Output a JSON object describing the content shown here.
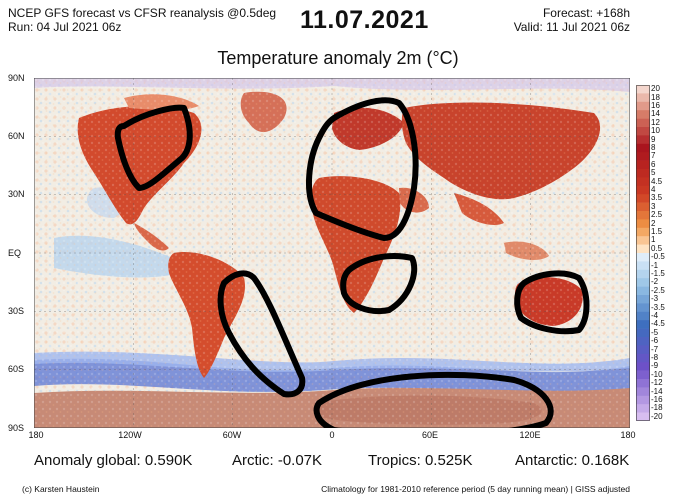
{
  "header": {
    "left_line1": "NCEP GFS forecast vs CFSR reanalysis @0.5deg",
    "left_line2": "Run: 04 Jul 2021 06z",
    "date": "11.07.2021",
    "right_line1": "Forecast: +168h",
    "right_line2": "Valid: 11 Jul 2021 06z"
  },
  "title": "Temperature anomaly 2m (°C)",
  "map": {
    "lat_labels": [
      "90N",
      "60N",
      "30N",
      "EQ",
      "30S",
      "60S",
      "90S"
    ],
    "lon_labels": [
      "180",
      "120W",
      "60W",
      "0",
      "60E",
      "120E",
      "180"
    ]
  },
  "colorbar": {
    "labels": [
      "20",
      "18",
      "16",
      "14",
      "12",
      "10",
      "9",
      "8",
      "7",
      "6",
      "5",
      "4.5",
      "4",
      "3.5",
      "3",
      "2.5",
      "2",
      "1.5",
      "1",
      "0.5",
      "-0.5",
      "-1",
      "-1.5",
      "-2",
      "-2.5",
      "-3",
      "-3.5",
      "-4",
      "-4.5",
      "-5",
      "-6",
      "-7",
      "-8",
      "-9",
      "-10",
      "-12",
      "-14",
      "-16",
      "-18",
      "-20"
    ]
  },
  "stats": {
    "global": "Anomaly global: 0.590K",
    "arctic": "Arctic: -0.07K",
    "tropics": "Tropics: 0.525K",
    "antarctic": "Antarctic: 0.168K"
  },
  "footer": {
    "left": "(c) Karsten Haustein",
    "right": "Climatology for 1981-2010 reference period (5 day running mean) | GISS adjusted"
  }
}
